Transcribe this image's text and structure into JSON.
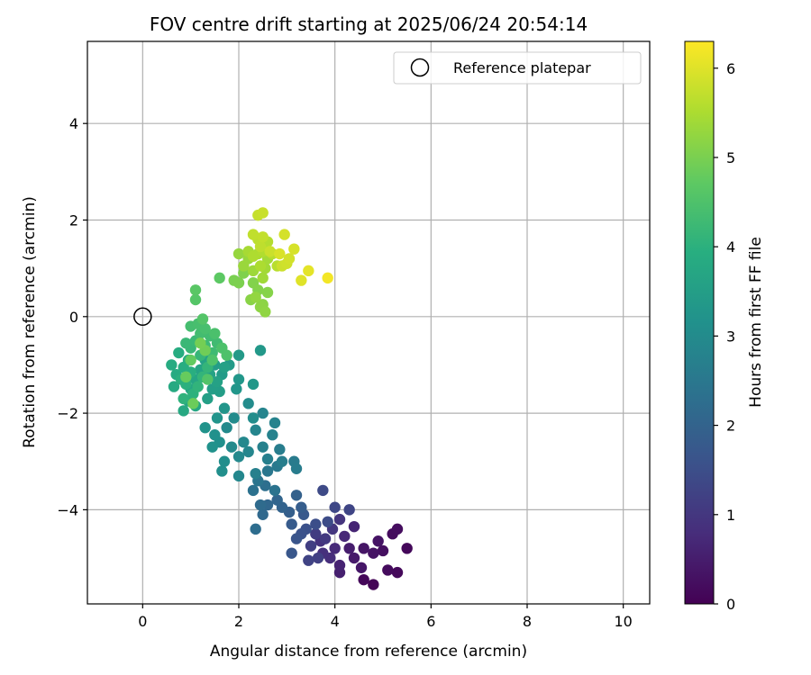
{
  "chart_data": {
    "type": "scatter",
    "title": "FOV centre drift starting at 2025/06/24 20:54:14",
    "xlabel": "Angular distance from reference (arcmin)",
    "ylabel": "Rotation from reference (arcmin)",
    "xlim": [
      -1.15,
      10.55
    ],
    "ylim": [
      -5.95,
      5.7
    ],
    "xticks": [
      0,
      2,
      4,
      6,
      8,
      10
    ],
    "yticks": [
      -4,
      -2,
      0,
      2,
      4
    ],
    "grid": true,
    "legend": {
      "position": "top-right",
      "entries": [
        "Reference platepar"
      ]
    },
    "reference_point": {
      "x": 0,
      "y": 0
    },
    "colorbar": {
      "label": "Hours from first FF file",
      "range": [
        0,
        6.3
      ],
      "ticks": [
        0,
        1,
        2,
        3,
        4,
        5,
        6
      ],
      "colormap": "viridis"
    },
    "points": [
      {
        "x": 4.8,
        "y": -5.55,
        "t": 0.05
      },
      {
        "x": 4.6,
        "y": -5.45,
        "t": 0.1
      },
      {
        "x": 5.5,
        "y": -4.8,
        "t": 0.12
      },
      {
        "x": 5.3,
        "y": -5.3,
        "t": 0.15
      },
      {
        "x": 5.1,
        "y": -5.25,
        "t": 0.18
      },
      {
        "x": 5.2,
        "y": -4.5,
        "t": 0.2
      },
      {
        "x": 5.3,
        "y": -4.4,
        "t": 0.22
      },
      {
        "x": 5.0,
        "y": -4.85,
        "t": 0.25
      },
      {
        "x": 4.8,
        "y": -4.9,
        "t": 0.3
      },
      {
        "x": 4.9,
        "y": -4.65,
        "t": 0.32
      },
      {
        "x": 4.6,
        "y": -4.8,
        "t": 0.35
      },
      {
        "x": 4.55,
        "y": -5.2,
        "t": 0.38
      },
      {
        "x": 4.4,
        "y": -5.0,
        "t": 0.45
      },
      {
        "x": 4.3,
        "y": -4.8,
        "t": 0.5
      },
      {
        "x": 4.1,
        "y": -5.3,
        "t": 0.55
      },
      {
        "x": 4.1,
        "y": -5.15,
        "t": 0.6
      },
      {
        "x": 4.4,
        "y": -4.35,
        "t": 0.65
      },
      {
        "x": 4.2,
        "y": -4.55,
        "t": 0.7
      },
      {
        "x": 4.0,
        "y": -4.8,
        "t": 0.75
      },
      {
        "x": 3.9,
        "y": -5.0,
        "t": 0.8
      },
      {
        "x": 3.75,
        "y": -4.9,
        "t": 0.85
      },
      {
        "x": 3.7,
        "y": -4.65,
        "t": 0.9
      },
      {
        "x": 4.1,
        "y": -4.2,
        "t": 0.95
      },
      {
        "x": 3.95,
        "y": -4.4,
        "t": 1.0
      },
      {
        "x": 3.8,
        "y": -4.6,
        "t": 1.05
      },
      {
        "x": 3.6,
        "y": -4.5,
        "t": 1.1
      },
      {
        "x": 3.5,
        "y": -4.75,
        "t": 1.15
      },
      {
        "x": 3.65,
        "y": -5.0,
        "t": 1.2
      },
      {
        "x": 3.45,
        "y": -5.05,
        "t": 1.25
      },
      {
        "x": 4.3,
        "y": -4.0,
        "t": 1.3
      },
      {
        "x": 4.0,
        "y": -3.95,
        "t": 1.35
      },
      {
        "x": 3.75,
        "y": -3.6,
        "t": 1.4
      },
      {
        "x": 3.85,
        "y": -4.25,
        "t": 1.45
      },
      {
        "x": 3.6,
        "y": -4.3,
        "t": 1.5
      },
      {
        "x": 3.4,
        "y": -4.4,
        "t": 1.55
      },
      {
        "x": 3.3,
        "y": -4.5,
        "t": 1.6
      },
      {
        "x": 3.2,
        "y": -4.6,
        "t": 1.65
      },
      {
        "x": 3.1,
        "y": -4.9,
        "t": 1.7
      },
      {
        "x": 3.35,
        "y": -4.1,
        "t": 1.75
      },
      {
        "x": 3.1,
        "y": -4.3,
        "t": 1.8
      },
      {
        "x": 3.3,
        "y": -3.95,
        "t": 1.85
      },
      {
        "x": 3.05,
        "y": -4.05,
        "t": 1.9
      },
      {
        "x": 3.2,
        "y": -3.7,
        "t": 1.95
      },
      {
        "x": 2.9,
        "y": -3.95,
        "t": 2.0
      },
      {
        "x": 2.8,
        "y": -3.8,
        "t": 2.05
      },
      {
        "x": 2.6,
        "y": -3.9,
        "t": 2.1
      },
      {
        "x": 2.5,
        "y": -4.1,
        "t": 2.15
      },
      {
        "x": 2.45,
        "y": -3.9,
        "t": 2.2
      },
      {
        "x": 2.35,
        "y": -4.4,
        "t": 2.25
      },
      {
        "x": 2.55,
        "y": -3.5,
        "t": 2.3
      },
      {
        "x": 2.3,
        "y": -3.6,
        "t": 2.35
      },
      {
        "x": 2.75,
        "y": -3.6,
        "t": 2.4
      },
      {
        "x": 2.4,
        "y": -3.4,
        "t": 2.45
      },
      {
        "x": 2.6,
        "y": -3.2,
        "t": 2.5
      },
      {
        "x": 2.8,
        "y": -3.1,
        "t": 2.55
      },
      {
        "x": 3.15,
        "y": -3.0,
        "t": 2.6
      },
      {
        "x": 3.2,
        "y": -3.15,
        "t": 2.62
      },
      {
        "x": 2.85,
        "y": -2.75,
        "t": 2.65
      },
      {
        "x": 2.9,
        "y": -3.0,
        "t": 2.68
      },
      {
        "x": 2.6,
        "y": -2.95,
        "t": 2.7
      },
      {
        "x": 2.35,
        "y": -3.25,
        "t": 2.72
      },
      {
        "x": 2.5,
        "y": -2.7,
        "t": 2.75
      },
      {
        "x": 2.7,
        "y": -2.45,
        "t": 2.78
      },
      {
        "x": 2.75,
        "y": -2.2,
        "t": 2.8
      },
      {
        "x": 2.5,
        "y": -2.0,
        "t": 2.82
      },
      {
        "x": 2.35,
        "y": -2.35,
        "t": 2.85
      },
      {
        "x": 2.2,
        "y": -2.8,
        "t": 2.88
      },
      {
        "x": 2.0,
        "y": -3.3,
        "t": 2.9
      },
      {
        "x": 2.1,
        "y": -2.6,
        "t": 2.92
      },
      {
        "x": 2.0,
        "y": -2.9,
        "t": 2.94
      },
      {
        "x": 1.85,
        "y": -2.7,
        "t": 2.96
      },
      {
        "x": 1.75,
        "y": -2.3,
        "t": 2.98
      },
      {
        "x": 1.9,
        "y": -2.1,
        "t": 3.0
      },
      {
        "x": 2.2,
        "y": -1.8,
        "t": 3.02
      },
      {
        "x": 2.3,
        "y": -2.1,
        "t": 3.05
      },
      {
        "x": 1.7,
        "y": -3.0,
        "t": 3.08
      },
      {
        "x": 1.65,
        "y": -3.2,
        "t": 3.1
      },
      {
        "x": 1.6,
        "y": -2.6,
        "t": 3.12
      },
      {
        "x": 1.5,
        "y": -2.45,
        "t": 3.15
      },
      {
        "x": 1.45,
        "y": -2.7,
        "t": 3.18
      },
      {
        "x": 1.3,
        "y": -2.3,
        "t": 3.2
      },
      {
        "x": 1.55,
        "y": -2.1,
        "t": 3.22
      },
      {
        "x": 1.7,
        "y": -1.9,
        "t": 3.25
      },
      {
        "x": 1.95,
        "y": -1.5,
        "t": 3.28
      },
      {
        "x": 2.0,
        "y": -1.3,
        "t": 3.3
      },
      {
        "x": 2.3,
        "y": -1.4,
        "t": 3.32
      },
      {
        "x": 2.45,
        "y": -0.7,
        "t": 3.35
      },
      {
        "x": 2.0,
        "y": -0.8,
        "t": 3.38
      },
      {
        "x": 1.8,
        "y": -1.0,
        "t": 3.4
      },
      {
        "x": 1.65,
        "y": -1.2,
        "t": 3.42
      },
      {
        "x": 1.5,
        "y": -1.0,
        "t": 3.45
      },
      {
        "x": 1.6,
        "y": -1.55,
        "t": 3.48
      },
      {
        "x": 1.45,
        "y": -1.5,
        "t": 3.5
      },
      {
        "x": 1.35,
        "y": -1.7,
        "t": 3.52
      },
      {
        "x": 1.7,
        "y": -1.05,
        "t": 3.55
      },
      {
        "x": 1.55,
        "y": -1.35,
        "t": 3.58
      },
      {
        "x": 1.4,
        "y": -1.2,
        "t": 3.6
      },
      {
        "x": 1.3,
        "y": -0.9,
        "t": 3.62
      },
      {
        "x": 1.2,
        "y": -1.1,
        "t": 3.65
      },
      {
        "x": 1.1,
        "y": -1.3,
        "t": 3.68
      },
      {
        "x": 1.0,
        "y": -1.5,
        "t": 3.7
      },
      {
        "x": 0.95,
        "y": -1.75,
        "t": 3.72
      },
      {
        "x": 1.1,
        "y": -1.85,
        "t": 3.75
      },
      {
        "x": 0.85,
        "y": -1.95,
        "t": 3.78
      },
      {
        "x": 0.65,
        "y": -1.45,
        "t": 3.8
      },
      {
        "x": 0.7,
        "y": -1.2,
        "t": 3.82
      },
      {
        "x": 0.6,
        "y": -1.0,
        "t": 3.85
      },
      {
        "x": 0.75,
        "y": -0.75,
        "t": 3.88
      },
      {
        "x": 0.85,
        "y": -1.05,
        "t": 3.9
      },
      {
        "x": 0.95,
        "y": -0.9,
        "t": 3.92
      },
      {
        "x": 1.0,
        "y": -1.15,
        "t": 3.95
      },
      {
        "x": 0.8,
        "y": -1.3,
        "t": 3.98
      },
      {
        "x": 0.9,
        "y": -1.4,
        "t": 4.0
      },
      {
        "x": 1.05,
        "y": -1.6,
        "t": 4.02
      },
      {
        "x": 0.85,
        "y": -1.7,
        "t": 4.05
      },
      {
        "x": 1.15,
        "y": -1.45,
        "t": 4.08
      },
      {
        "x": 1.25,
        "y": -1.25,
        "t": 4.1
      },
      {
        "x": 1.35,
        "y": -1.05,
        "t": 4.12
      },
      {
        "x": 1.2,
        "y": -0.8,
        "t": 4.15
      },
      {
        "x": 1.0,
        "y": -0.65,
        "t": 4.18
      },
      {
        "x": 0.9,
        "y": -0.55,
        "t": 4.2
      },
      {
        "x": 1.1,
        "y": -0.5,
        "t": 4.22
      },
      {
        "x": 1.3,
        "y": -0.6,
        "t": 4.25
      },
      {
        "x": 1.45,
        "y": -0.75,
        "t": 4.28
      },
      {
        "x": 1.55,
        "y": -0.55,
        "t": 4.3
      },
      {
        "x": 1.4,
        "y": -0.4,
        "t": 4.32
      },
      {
        "x": 1.2,
        "y": -0.35,
        "t": 4.35
      },
      {
        "x": 1.0,
        "y": -0.2,
        "t": 4.38
      },
      {
        "x": 1.15,
        "y": -0.15,
        "t": 4.4
      },
      {
        "x": 1.3,
        "y": -0.25,
        "t": 4.42
      },
      {
        "x": 1.5,
        "y": -0.35,
        "t": 4.45
      },
      {
        "x": 1.65,
        "y": -0.65,
        "t": 4.48
      },
      {
        "x": 1.75,
        "y": -0.8,
        "t": 4.5
      },
      {
        "x": 1.45,
        "y": -0.9,
        "t": 4.52
      },
      {
        "x": 1.35,
        "y": -1.3,
        "t": 4.55
      },
      {
        "x": 1.25,
        "y": -0.05,
        "t": 4.58
      },
      {
        "x": 1.1,
        "y": 0.35,
        "t": 4.6
      },
      {
        "x": 1.1,
        "y": 0.55,
        "t": 4.65
      },
      {
        "x": 1.6,
        "y": 0.8,
        "t": 4.7
      },
      {
        "x": 1.0,
        "y": -0.9,
        "t": 4.75
      },
      {
        "x": 0.9,
        "y": -1.25,
        "t": 4.8
      },
      {
        "x": 1.05,
        "y": -1.8,
        "t": 4.85
      },
      {
        "x": 1.3,
        "y": -0.7,
        "t": 4.9
      },
      {
        "x": 1.2,
        "y": -0.55,
        "t": 4.95
      },
      {
        "x": 1.9,
        "y": 0.75,
        "t": 5.0
      },
      {
        "x": 2.0,
        "y": 0.7,
        "t": 5.02
      },
      {
        "x": 2.1,
        "y": 0.9,
        "t": 5.05
      },
      {
        "x": 2.3,
        "y": 0.7,
        "t": 5.08
      },
      {
        "x": 2.4,
        "y": 0.55,
        "t": 5.1
      },
      {
        "x": 2.6,
        "y": 0.5,
        "t": 5.12
      },
      {
        "x": 2.25,
        "y": 0.35,
        "t": 5.15
      },
      {
        "x": 2.5,
        "y": 0.25,
        "t": 5.18
      },
      {
        "x": 2.45,
        "y": 0.2,
        "t": 5.2
      },
      {
        "x": 2.55,
        "y": 0.1,
        "t": 5.22
      },
      {
        "x": 2.35,
        "y": 0.4,
        "t": 5.25
      },
      {
        "x": 2.0,
        "y": 1.3,
        "t": 5.28
      },
      {
        "x": 2.2,
        "y": 1.2,
        "t": 5.3
      },
      {
        "x": 2.1,
        "y": 1.05,
        "t": 5.32
      },
      {
        "x": 2.3,
        "y": 0.95,
        "t": 5.35
      },
      {
        "x": 2.5,
        "y": 0.8,
        "t": 5.38
      },
      {
        "x": 2.55,
        "y": 1.0,
        "t": 5.4
      },
      {
        "x": 2.6,
        "y": 1.2,
        "t": 5.42
      },
      {
        "x": 2.2,
        "y": 1.35,
        "t": 5.45
      },
      {
        "x": 2.4,
        "y": 1.3,
        "t": 5.48
      },
      {
        "x": 2.45,
        "y": 1.05,
        "t": 5.5
      },
      {
        "x": 2.3,
        "y": 1.25,
        "t": 5.52
      },
      {
        "x": 2.5,
        "y": 1.35,
        "t": 5.55
      },
      {
        "x": 2.6,
        "y": 1.55,
        "t": 5.58
      },
      {
        "x": 2.7,
        "y": 1.3,
        "t": 5.6
      },
      {
        "x": 2.8,
        "y": 1.05,
        "t": 5.62
      },
      {
        "x": 2.4,
        "y": 1.6,
        "t": 5.65
      },
      {
        "x": 2.45,
        "y": 1.45,
        "t": 5.68
      },
      {
        "x": 2.3,
        "y": 1.7,
        "t": 5.7
      },
      {
        "x": 2.5,
        "y": 1.65,
        "t": 5.72
      },
      {
        "x": 2.4,
        "y": 2.1,
        "t": 5.75
      },
      {
        "x": 2.5,
        "y": 2.15,
        "t": 5.78
      },
      {
        "x": 2.65,
        "y": 1.35,
        "t": 5.8
      },
      {
        "x": 2.9,
        "y": 1.05,
        "t": 5.82
      },
      {
        "x": 3.0,
        "y": 1.1,
        "t": 5.85
      },
      {
        "x": 3.05,
        "y": 1.2,
        "t": 5.88
      },
      {
        "x": 2.95,
        "y": 1.7,
        "t": 5.9
      },
      {
        "x": 3.15,
        "y": 1.4,
        "t": 5.92
      },
      {
        "x": 2.85,
        "y": 1.3,
        "t": 5.95
      },
      {
        "x": 3.3,
        "y": 0.75,
        "t": 6.0
      },
      {
        "x": 3.45,
        "y": 0.95,
        "t": 6.05
      },
      {
        "x": 3.85,
        "y": 0.8,
        "t": 6.2
      }
    ]
  }
}
